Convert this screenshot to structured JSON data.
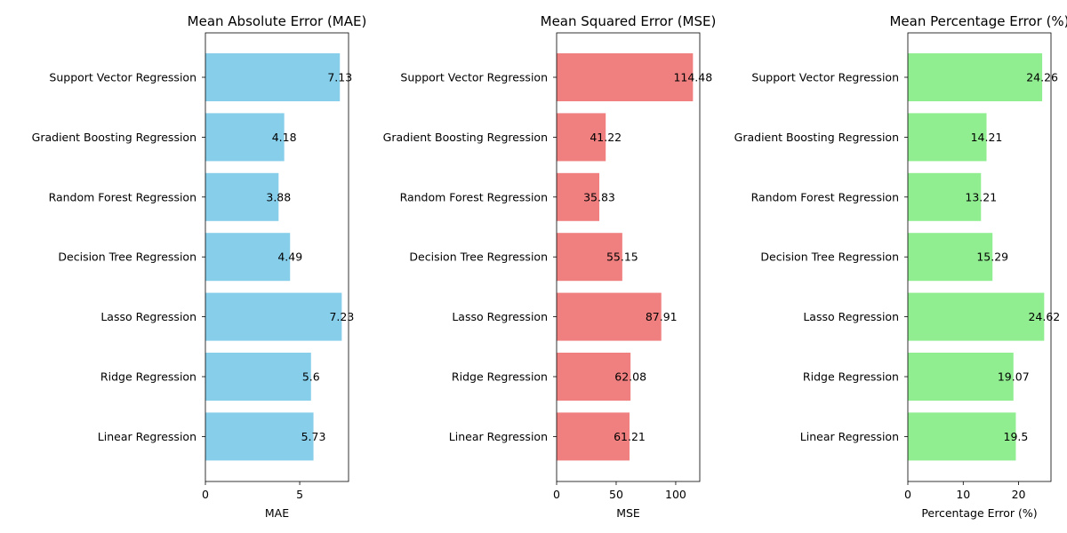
{
  "chart_data": [
    {
      "type": "bar",
      "orientation": "horizontal",
      "title": "Mean Absolute Error (MAE)",
      "xlabel": "MAE",
      "ylabel": "",
      "categories": [
        "Linear Regression",
        "Ridge Regression",
        "Lasso Regression",
        "Decision Tree Regression",
        "Random Forest Regression",
        "Gradient Boosting Regression",
        "Support Vector Regression"
      ],
      "values": [
        5.73,
        5.6,
        7.23,
        4.49,
        3.88,
        4.18,
        7.13
      ],
      "value_labels": [
        "5.73",
        "5.6",
        "7.23",
        "4.49",
        "3.88",
        "4.18",
        "7.13"
      ],
      "xlim": [
        0,
        7.59
      ],
      "xticks": [
        0,
        5
      ],
      "xtick_labels": [
        "0",
        "5"
      ],
      "color": "#87ceeb",
      "grid": false
    },
    {
      "type": "bar",
      "orientation": "horizontal",
      "title": "Mean Squared Error (MSE)",
      "xlabel": "MSE",
      "ylabel": "",
      "categories": [
        "Linear Regression",
        "Ridge Regression",
        "Lasso Regression",
        "Decision Tree Regression",
        "Random Forest Regression",
        "Gradient Boosting Regression",
        "Support Vector Regression"
      ],
      "values": [
        61.21,
        62.08,
        87.91,
        55.15,
        35.83,
        41.22,
        114.48
      ],
      "value_labels": [
        "61.21",
        "62.08",
        "87.91",
        "55.15",
        "35.83",
        "41.22",
        "114.48"
      ],
      "xlim": [
        0,
        120.2
      ],
      "xticks": [
        0,
        50,
        100
      ],
      "xtick_labels": [
        "0",
        "50",
        "100"
      ],
      "color": "#f08080",
      "grid": false
    },
    {
      "type": "bar",
      "orientation": "horizontal",
      "title": "Mean Percentage Error (%)",
      "xlabel": "Percentage Error (%)",
      "ylabel": "",
      "categories": [
        "Linear Regression",
        "Ridge Regression",
        "Lasso Regression",
        "Decision Tree Regression",
        "Random Forest Regression",
        "Gradient Boosting Regression",
        "Support Vector Regression"
      ],
      "values": [
        19.5,
        19.07,
        24.62,
        15.29,
        13.21,
        14.21,
        24.26
      ],
      "value_labels": [
        "19.5",
        "19.07",
        "24.62",
        "15.29",
        "13.21",
        "14.21",
        "24.26"
      ],
      "xlim": [
        0,
        25.85
      ],
      "xticks": [
        0,
        10,
        20
      ],
      "xtick_labels": [
        "0",
        "10",
        "20"
      ],
      "color": "#90ee90",
      "grid": false
    }
  ]
}
